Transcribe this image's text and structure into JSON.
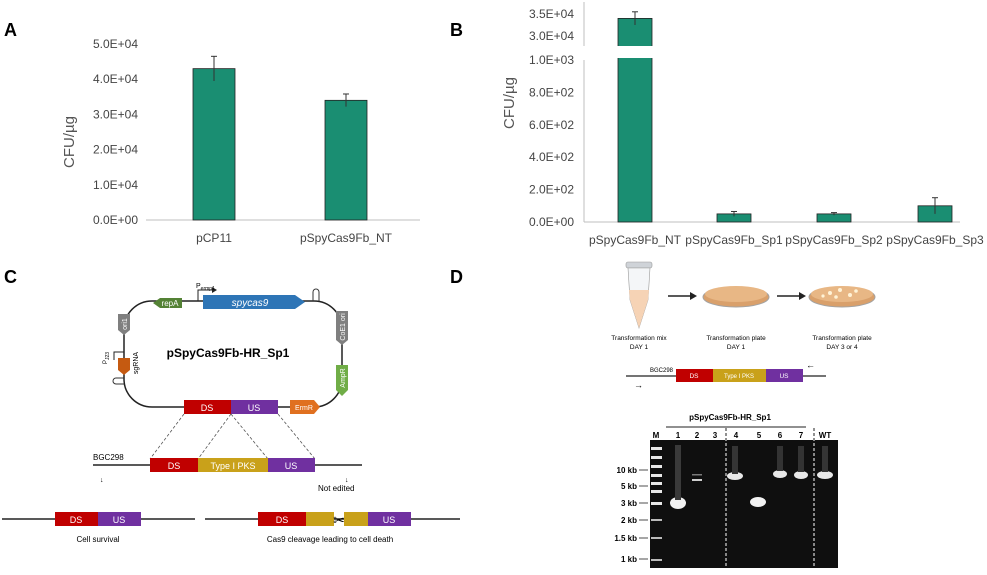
{
  "panels": {
    "A": {
      "letter": "A",
      "chart_data": {
        "type": "bar",
        "ylabel": "CFU/µg",
        "yticks": [
          "0.0E+00",
          "1.0E+04",
          "2.0E+04",
          "3.0E+04",
          "4.0E+04",
          "5.0E+04"
        ],
        "ylim": [
          0,
          50000
        ],
        "categories": [
          "pCP11",
          "pSpyCas9Fb_NT"
        ],
        "values": [
          43000,
          34000
        ],
        "errors": [
          3500,
          1800
        ],
        "bar_color": "#1a8e72"
      }
    },
    "B": {
      "letter": "B",
      "chart_data": {
        "type": "bar",
        "ylabel": "CFU/µg",
        "axis_break": true,
        "yticks_lower": [
          "0.0E+00",
          "2.0E+02",
          "4.0E+02",
          "6.0E+02",
          "8.0E+02",
          "1.0E+03"
        ],
        "yticks_upper": [
          "3.0E+04",
          "3.5E+04"
        ],
        "ylim_lower": [
          0,
          1000
        ],
        "ylim_upper": [
          30000,
          35000
        ],
        "categories": [
          "pSpyCas9Fb_NT",
          "pSpyCas9Fb_Sp1",
          "pSpyCas9Fb_Sp2",
          "pSpyCas9Fb_Sp3"
        ],
        "values": [
          34000,
          50,
          50,
          100
        ],
        "errors": [
          1500,
          15,
          8,
          50
        ],
        "bar_color": "#1a8e72"
      }
    },
    "C": {
      "letter": "C",
      "plasmid_name": "pSpyCas9Fb-HR_Sp1",
      "promoter_label": "P",
      "promoter_sub": "ermp1",
      "repA": "repA",
      "cas9": "spycas9",
      "ori1": "ori1",
      "coe1": "CoE1 ori",
      "amp": "AmpR",
      "erm": "ErmR",
      "sgrna": "sgRNA",
      "p_label": "P",
      "p_sub": "J23",
      "ds": "DS",
      "us": "US",
      "locus": "BGC298",
      "pks": "Type I PKS",
      "not_edited": "Not edited",
      "survival": "Cell survival",
      "death": "Cas9 cleavage leading to cell death"
    },
    "D": {
      "letter": "D",
      "step1_title": "Transformation mix",
      "step1_day": "DAY 1",
      "step2_title": "Transformation plate",
      "step2_day": "DAY 1",
      "step3_title": "Transformation plate",
      "step3_day": "DAY 3 or 4",
      "locus": "BGC298",
      "ds": "DS",
      "pks": "Type I PKS",
      "us": "US",
      "gel_title": "pSpyCas9Fb-HR_Sp1",
      "lanes": [
        "M",
        "1",
        "2",
        "3",
        "4",
        "5",
        "6",
        "7",
        "WT"
      ],
      "ladder": [
        "10 kb",
        "5 kb",
        "3 kb",
        "2 kb",
        "1.5 kb",
        "1 kb"
      ]
    }
  },
  "colors": {
    "ds": "#c00000",
    "pks": "#c9a11a",
    "us": "#7030a0",
    "cas9": "#2e75b6",
    "repA": "#548235",
    "erm": "#e07020",
    "ori": "#7f7f7f",
    "amp": "#70ad47",
    "sgrna": "#c55a11"
  }
}
